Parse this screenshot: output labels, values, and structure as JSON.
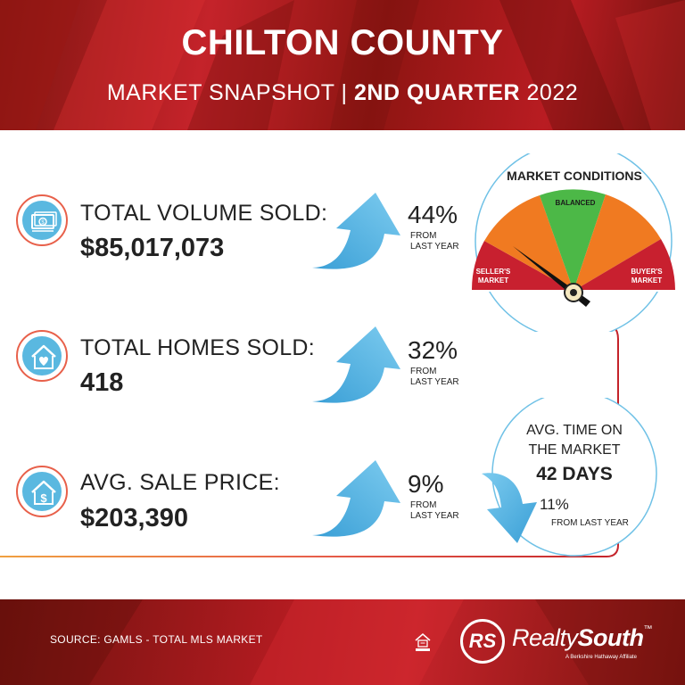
{
  "header": {
    "title": "CHILTON COUNTY",
    "subtitle_light": "MARKET SNAPSHOT | ",
    "subtitle_bold": "2ND QUARTER",
    "subtitle_year": " 2022"
  },
  "stats": [
    {
      "label": "TOTAL VOLUME SOLD:",
      "value": "$85,017,073",
      "change": "44%",
      "change_note_1": "FROM",
      "change_note_2": "LAST YEAR",
      "direction": "up",
      "icon": "money-icon"
    },
    {
      "label": "TOTAL HOMES SOLD:",
      "value": "418",
      "change": "32%",
      "change_note_1": "FROM",
      "change_note_2": "LAST YEAR",
      "direction": "up",
      "icon": "house-heart-icon"
    },
    {
      "label": "AVG. SALE PRICE:",
      "value": "$203,390",
      "change": "9%",
      "change_note_1": "FROM",
      "change_note_2": "LAST YEAR",
      "direction": "up",
      "icon": "house-dollar-icon"
    }
  ],
  "gauge": {
    "title": "MARKET CONDITIONS",
    "sellers_1": "SELLER'S",
    "sellers_2": "MARKET",
    "balanced": "BALANCED",
    "buyers_1": "BUYER'S",
    "buyers_2": "MARKET",
    "indicator": "seller's market",
    "colors": {
      "sellers": "#c8202f",
      "transition": "#f07a21",
      "balanced": "#4cb847",
      "buyers": "#c8202f"
    }
  },
  "days_on_market": {
    "title_1": "AVG. TIME ON",
    "title_2": "THE MARKET",
    "value": "42 DAYS",
    "change": "11%",
    "change_note": "FROM LAST YEAR",
    "direction": "down"
  },
  "footer": {
    "source": "SOURCE: GAMLS - TOTAL MLS MARKET",
    "logo_mark": "RS",
    "brand_light": "Realty",
    "brand_bold": "South",
    "brand_tm": "™",
    "tagline": "A Berkshire Hathaway Affiliate"
  },
  "colors": {
    "brand_red": "#c4232a",
    "accent_blue": "#5ab8e0",
    "divider": "#e8604a"
  }
}
